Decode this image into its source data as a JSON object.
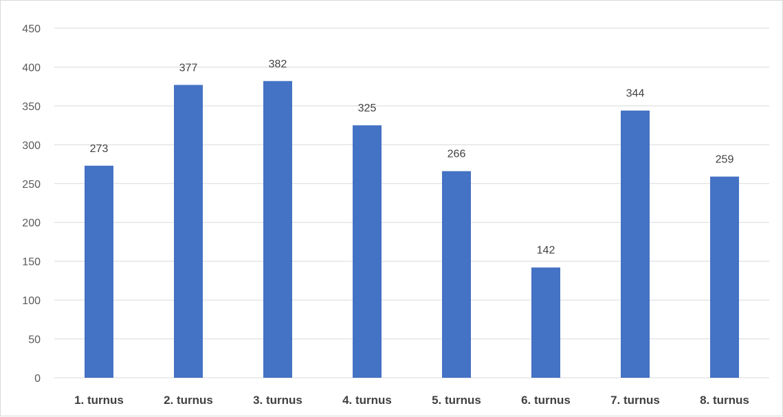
{
  "chart_data": {
    "type": "bar",
    "categories": [
      "1. turnus",
      "2. turnus",
      "3. turnus",
      "4. turnus",
      "5. turnus",
      "6. turnus",
      "7. turnus",
      "8. turnus"
    ],
    "values": [
      273,
      377,
      382,
      325,
      266,
      142,
      344,
      259
    ],
    "data_labels": [
      "273",
      "377",
      "382",
      "325",
      "266",
      "142",
      "344",
      "259"
    ],
    "y_ticks": [
      0,
      50,
      100,
      150,
      200,
      250,
      300,
      350,
      400,
      450
    ],
    "ylim": [
      0,
      450
    ],
    "title": "",
    "xlabel": "",
    "ylabel": "",
    "grid": true,
    "legend": "none",
    "bar_color": "#4472c4",
    "gridline_color": "#d9d9d9"
  }
}
